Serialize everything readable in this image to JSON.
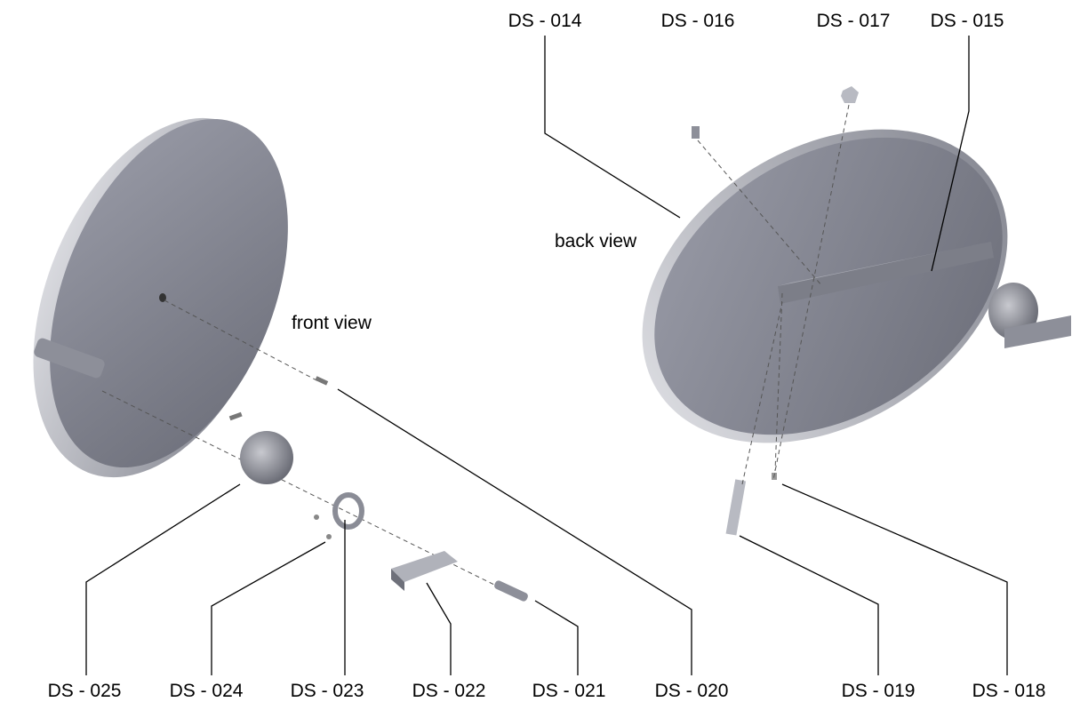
{
  "views": {
    "back": "back view",
    "front": "front view"
  },
  "top_labels": [
    "DS - 014",
    "DS - 016",
    "DS - 017",
    "DS - 015"
  ],
  "bottom_labels": [
    "DS - 025",
    "DS - 024",
    "DS - 023",
    "DS - 022",
    "DS - 021",
    "DS - 020",
    "DS - 019",
    "DS - 018"
  ]
}
